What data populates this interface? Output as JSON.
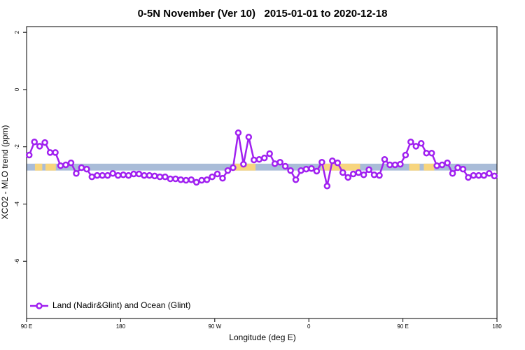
{
  "chart_data": {
    "type": "line",
    "title": "0-5N November (Ver 10)   2015-01-01 to 2020-12-18",
    "x_label": "Longitude (deg E)",
    "y_label": "XCO2 - MLO trend (ppm)",
    "xlim": [
      90,
      540
    ],
    "xticks": [
      {
        "value": 90,
        "label": "90 E"
      },
      180,
      {
        "value": 270,
        "label": "90 W"
      },
      {
        "value": 360,
        "label": "0"
      },
      {
        "value": 450,
        "label": "90 E"
      },
      {
        "value": 540,
        "label": "180"
      }
    ],
    "ylim": [
      -8,
      2.2
    ],
    "yticks": [
      -6,
      -4,
      -2,
      0,
      2
    ],
    "legend": "bottom-left",
    "band": {
      "ylim": [
        -2.83,
        -2.59
      ],
      "color": "#a9bcd8",
      "land_color": "#f7d57e",
      "land_x": [
        [
          98,
          105
        ],
        [
          108,
          118
        ],
        [
          289,
          309
        ],
        [
          372,
          409
        ],
        [
          456,
          466
        ],
        [
          470,
          480
        ]
      ]
    },
    "x": [
      92.5,
      97.5,
      102.5,
      107.5,
      112.5,
      117.5,
      122.5,
      127.5,
      132.5,
      137.5,
      142.5,
      147.5,
      152.5,
      157.5,
      162.5,
      167.5,
      172.5,
      177.5,
      182.5,
      187.5,
      192.5,
      197.5,
      202.5,
      207.5,
      212.5,
      217.5,
      222.5,
      227.5,
      232.5,
      237.5,
      242.5,
      247.5,
      252.5,
      257.5,
      262.5,
      267.5,
      272.5,
      277.5,
      282.5,
      287.5,
      292.5,
      297.5,
      302.5,
      307.5,
      312.5,
      317.5,
      322.5,
      327.5,
      332.5,
      337.5,
      342.5,
      347.5,
      352.5,
      357.5,
      362.5,
      367.5,
      372.5,
      377.5,
      382.5,
      387.5,
      392.5,
      397.5,
      402.5,
      407.5,
      412.5,
      417.5,
      422.5,
      427.5,
      432.5,
      437.5,
      442.5,
      447.5,
      452.5,
      457.5,
      462.5,
      467.5,
      472.5,
      477.5,
      482.5,
      487.5,
      492.5,
      497.5,
      502.5,
      507.5,
      512.5,
      517.5,
      522.5,
      527.5,
      532.5,
      537.5
    ],
    "series": [
      {
        "name": "Land (Nadir&Glint) and Ocean (Glint)",
        "color": "#a020f0",
        "values": [
          -2.29,
          -1.83,
          -1.98,
          -1.85,
          -2.2,
          -2.2,
          -2.66,
          -2.63,
          -2.56,
          -2.93,
          -2.73,
          -2.78,
          -3.05,
          -3.0,
          -3.0,
          -3.0,
          -2.93,
          -3.0,
          -2.98,
          -3.0,
          -2.95,
          -2.95,
          -3.0,
          -3.0,
          -3.02,
          -3.05,
          -3.05,
          -3.12,
          -3.12,
          -3.15,
          -3.17,
          -3.15,
          -3.24,
          -3.17,
          -3.15,
          -3.05,
          -2.95,
          -3.1,
          -2.83,
          -2.73,
          -1.51,
          -2.61,
          -1.66,
          -2.46,
          -2.44,
          -2.39,
          -2.24,
          -2.59,
          -2.54,
          -2.68,
          -2.83,
          -3.15,
          -2.83,
          -2.78,
          -2.76,
          -2.85,
          -2.54,
          -3.37,
          -2.49,
          -2.56,
          -2.9,
          -3.07,
          -2.95,
          -2.9,
          -2.98,
          -2.8,
          -2.98,
          -3.0,
          -2.44,
          -2.63,
          -2.63,
          -2.61,
          -2.29,
          -1.83,
          -1.98,
          -1.88,
          -2.22,
          -2.22,
          -2.66,
          -2.63,
          -2.56,
          -2.93,
          -2.73,
          -2.78,
          -3.07,
          -3.0,
          -3.0,
          -3.0,
          -2.93,
          -3.02
        ]
      }
    ]
  }
}
